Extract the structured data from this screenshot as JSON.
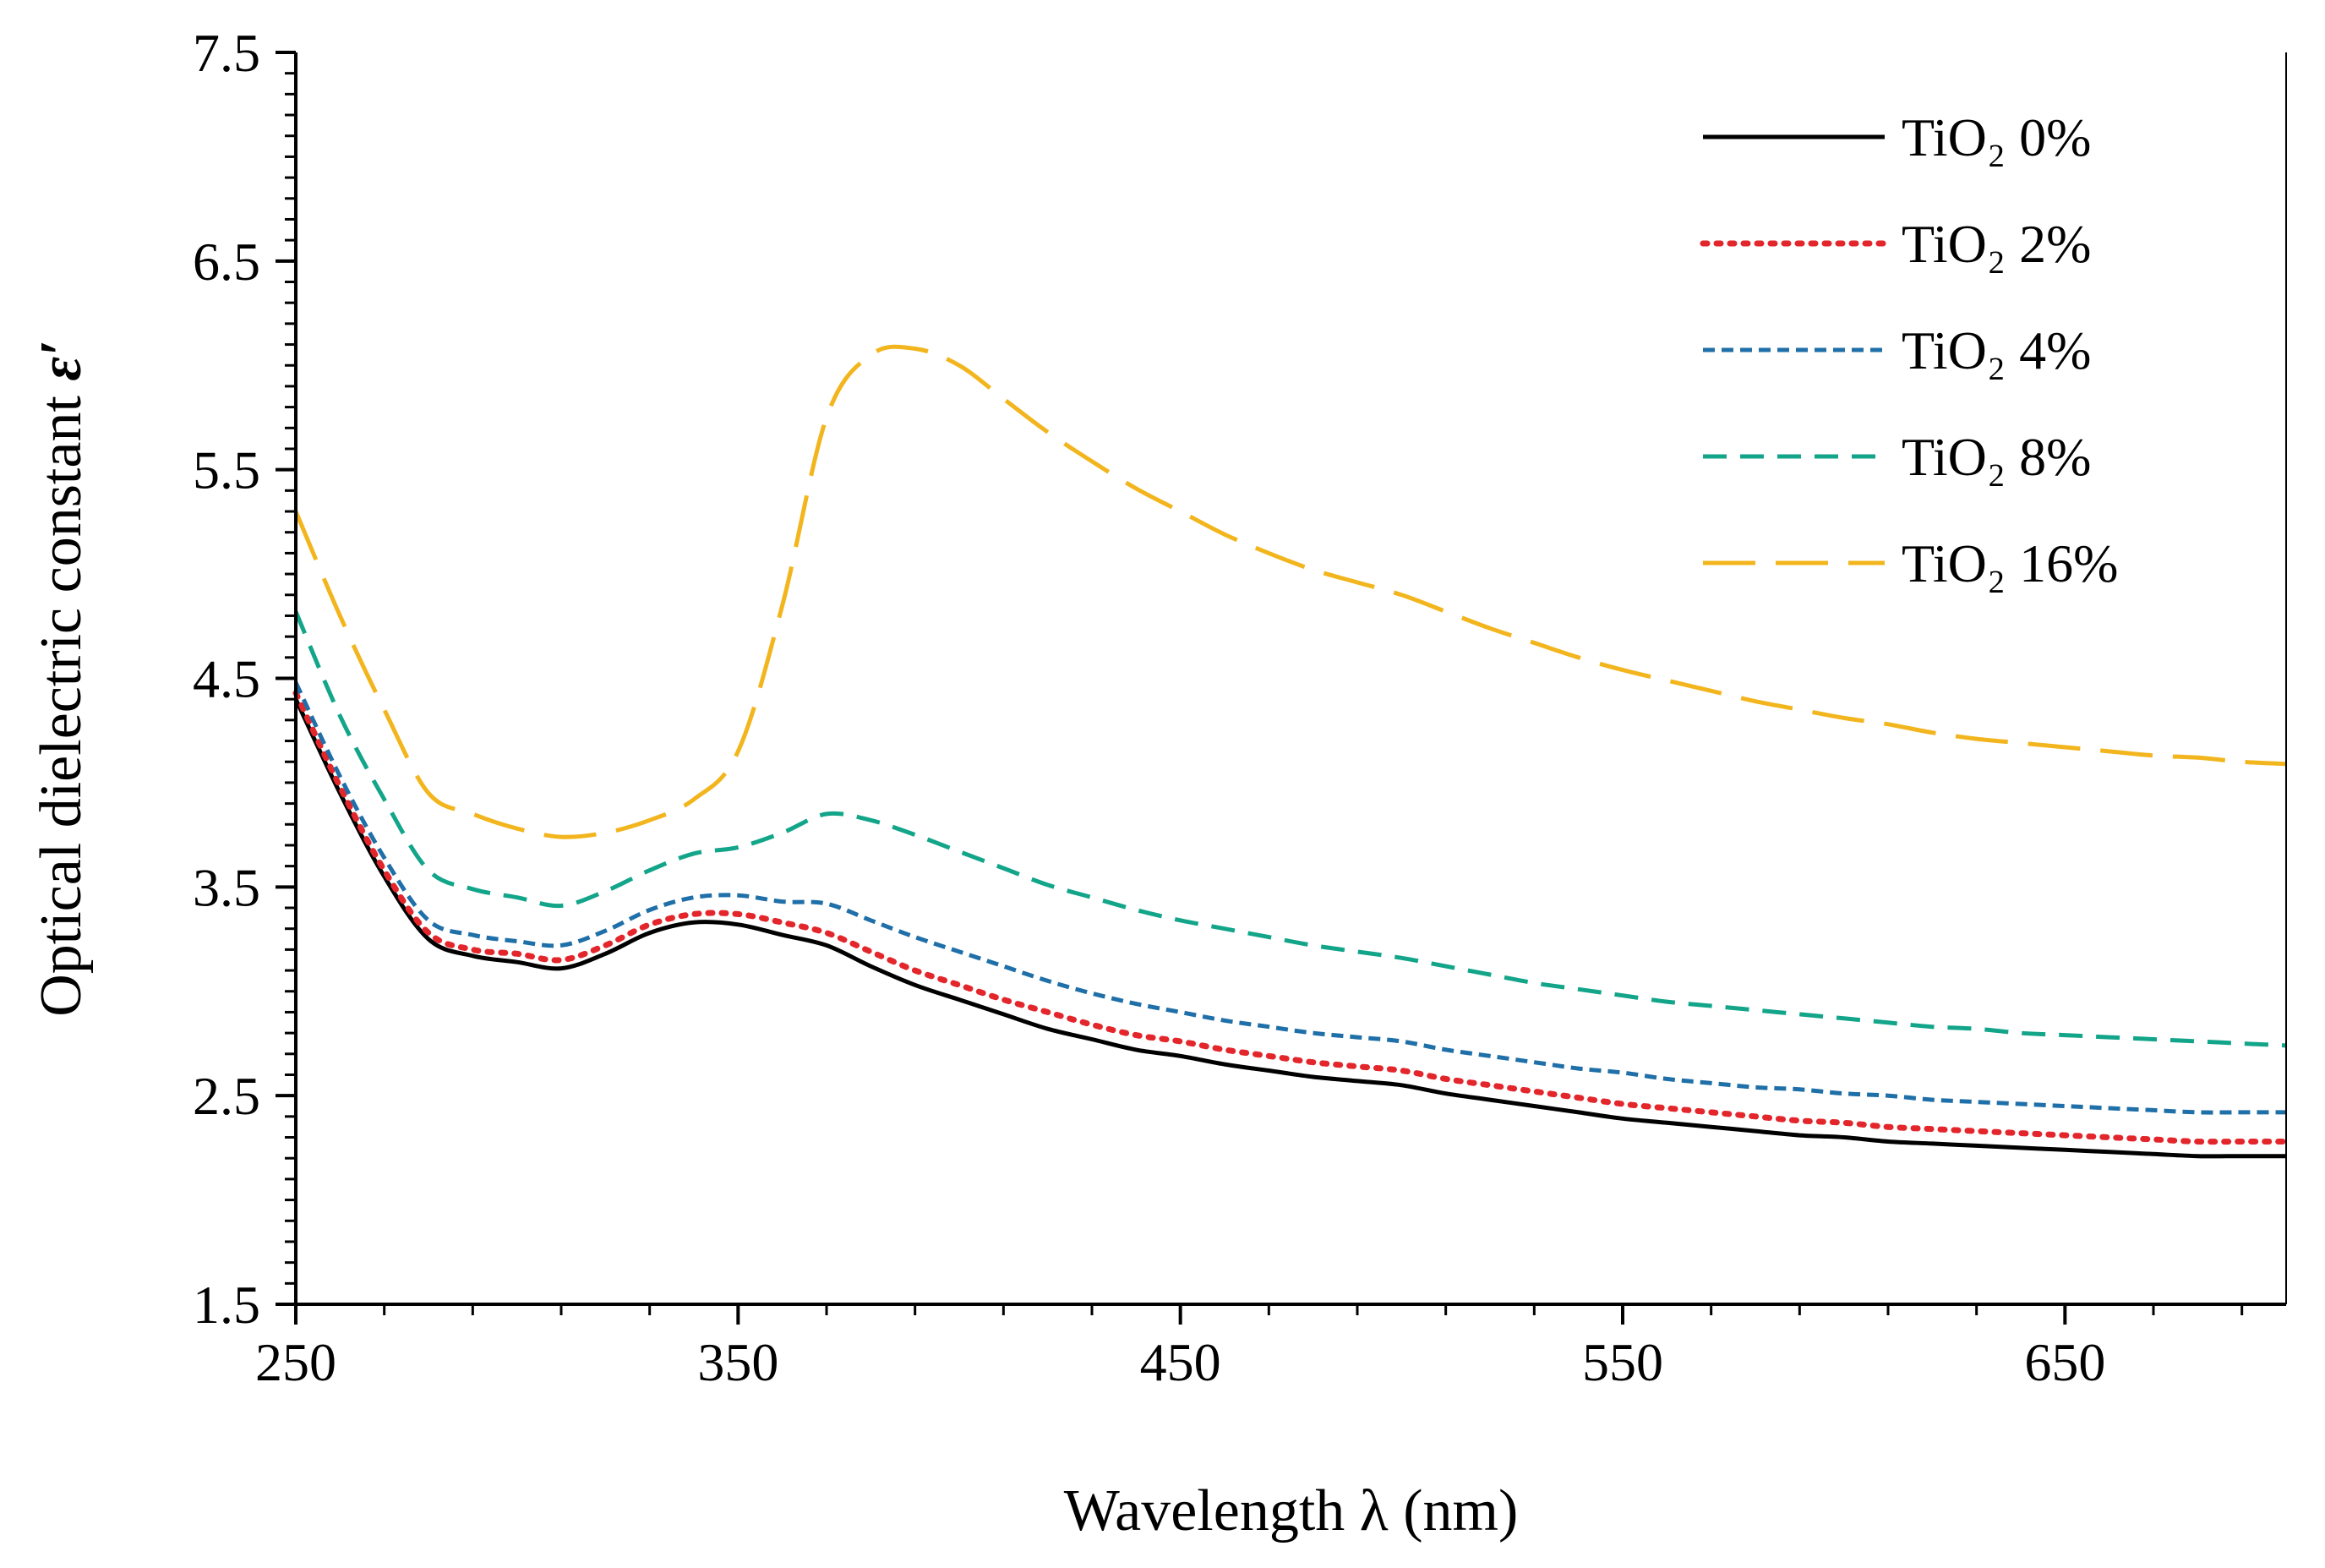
{
  "chart_data": {
    "type": "line",
    "title": "",
    "xlabel": "Wavelength λ (nm)",
    "ylabel": "Optical dielectric constant ",
    "ylabel_symbol": "ε′",
    "xlim": [
      250,
      700
    ],
    "ylim": [
      1.5,
      7.5
    ],
    "xticks": [
      250,
      350,
      450,
      550,
      650
    ],
    "xtick_labels": [
      "250",
      "350",
      "450",
      "550",
      "650"
    ],
    "yticks": [
      1.5,
      2.5,
      3.5,
      4.5,
      5.5,
      6.5,
      7.5
    ],
    "ytick_labels": [
      "1.5",
      "2.5",
      "3.5",
      "4.5",
      "5.5",
      "6.5",
      "7.5"
    ],
    "grid": false,
    "legend_position": "top-right",
    "x": [
      250,
      260,
      270,
      280,
      290,
      300,
      310,
      320,
      330,
      340,
      350,
      360,
      370,
      380,
      390,
      400,
      410,
      420,
      430,
      440,
      450,
      460,
      470,
      480,
      490,
      500,
      510,
      520,
      530,
      540,
      550,
      560,
      570,
      580,
      590,
      600,
      610,
      620,
      630,
      640,
      650,
      660,
      670,
      680,
      690,
      700
    ],
    "series": [
      {
        "name": "TiO₂  0%",
        "color": "#000000",
        "style": "solid",
        "values": [
          4.4,
          3.95,
          3.55,
          3.25,
          3.17,
          3.14,
          3.11,
          3.18,
          3.28,
          3.33,
          3.32,
          3.27,
          3.22,
          3.12,
          3.03,
          2.96,
          2.89,
          2.82,
          2.77,
          2.72,
          2.69,
          2.65,
          2.62,
          2.59,
          2.57,
          2.55,
          2.51,
          2.48,
          2.45,
          2.42,
          2.39,
          2.37,
          2.35,
          2.33,
          2.31,
          2.3,
          2.28,
          2.27,
          2.26,
          2.25,
          2.24,
          2.23,
          2.22,
          2.21,
          2.21,
          2.21
        ]
      },
      {
        "name": "TiO₂  2%",
        "color": "#e3262b",
        "style": "dotted",
        "values": [
          4.43,
          3.98,
          3.58,
          3.28,
          3.2,
          3.18,
          3.15,
          3.22,
          3.32,
          3.37,
          3.37,
          3.33,
          3.28,
          3.19,
          3.1,
          3.03,
          2.96,
          2.9,
          2.84,
          2.79,
          2.76,
          2.72,
          2.69,
          2.66,
          2.64,
          2.62,
          2.58,
          2.55,
          2.52,
          2.49,
          2.46,
          2.44,
          2.42,
          2.4,
          2.38,
          2.37,
          2.35,
          2.34,
          2.33,
          2.32,
          2.31,
          2.3,
          2.29,
          2.28,
          2.28,
          2.28
        ]
      },
      {
        "name": "TiO₂ 4%",
        "color": "#1f6fa8",
        "style": "short-dash",
        "values": [
          4.48,
          4.03,
          3.64,
          3.34,
          3.27,
          3.24,
          3.22,
          3.29,
          3.39,
          3.45,
          3.46,
          3.43,
          3.42,
          3.34,
          3.26,
          3.19,
          3.12,
          3.05,
          2.99,
          2.94,
          2.9,
          2.86,
          2.83,
          2.8,
          2.78,
          2.76,
          2.72,
          2.69,
          2.66,
          2.63,
          2.61,
          2.58,
          2.56,
          2.54,
          2.53,
          2.51,
          2.5,
          2.48,
          2.47,
          2.46,
          2.45,
          2.44,
          2.43,
          2.42,
          2.42,
          2.42
        ]
      },
      {
        "name": "TiO₂  8%",
        "color": "#13a58a",
        "style": "dash",
        "values": [
          4.82,
          4.32,
          3.92,
          3.58,
          3.49,
          3.45,
          3.41,
          3.48,
          3.58,
          3.66,
          3.69,
          3.76,
          3.85,
          3.82,
          3.75,
          3.67,
          3.59,
          3.51,
          3.45,
          3.39,
          3.34,
          3.3,
          3.26,
          3.22,
          3.19,
          3.16,
          3.12,
          3.08,
          3.04,
          3.01,
          2.98,
          2.95,
          2.93,
          2.91,
          2.89,
          2.87,
          2.85,
          2.83,
          2.82,
          2.8,
          2.79,
          2.78,
          2.77,
          2.76,
          2.75,
          2.74
        ]
      },
      {
        "name": "TiO₂  16%",
        "color": "#f2b51d",
        "style": "long-dash",
        "values": [
          5.3,
          4.8,
          4.35,
          3.95,
          3.85,
          3.78,
          3.74,
          3.76,
          3.82,
          3.92,
          4.15,
          4.85,
          5.75,
          6.05,
          6.08,
          6.0,
          5.84,
          5.68,
          5.54,
          5.41,
          5.3,
          5.19,
          5.1,
          5.02,
          4.96,
          4.9,
          4.82,
          4.74,
          4.67,
          4.6,
          4.54,
          4.49,
          4.44,
          4.39,
          4.35,
          4.31,
          4.28,
          4.24,
          4.21,
          4.19,
          4.17,
          4.15,
          4.13,
          4.12,
          4.1,
          4.09
        ]
      }
    ]
  }
}
